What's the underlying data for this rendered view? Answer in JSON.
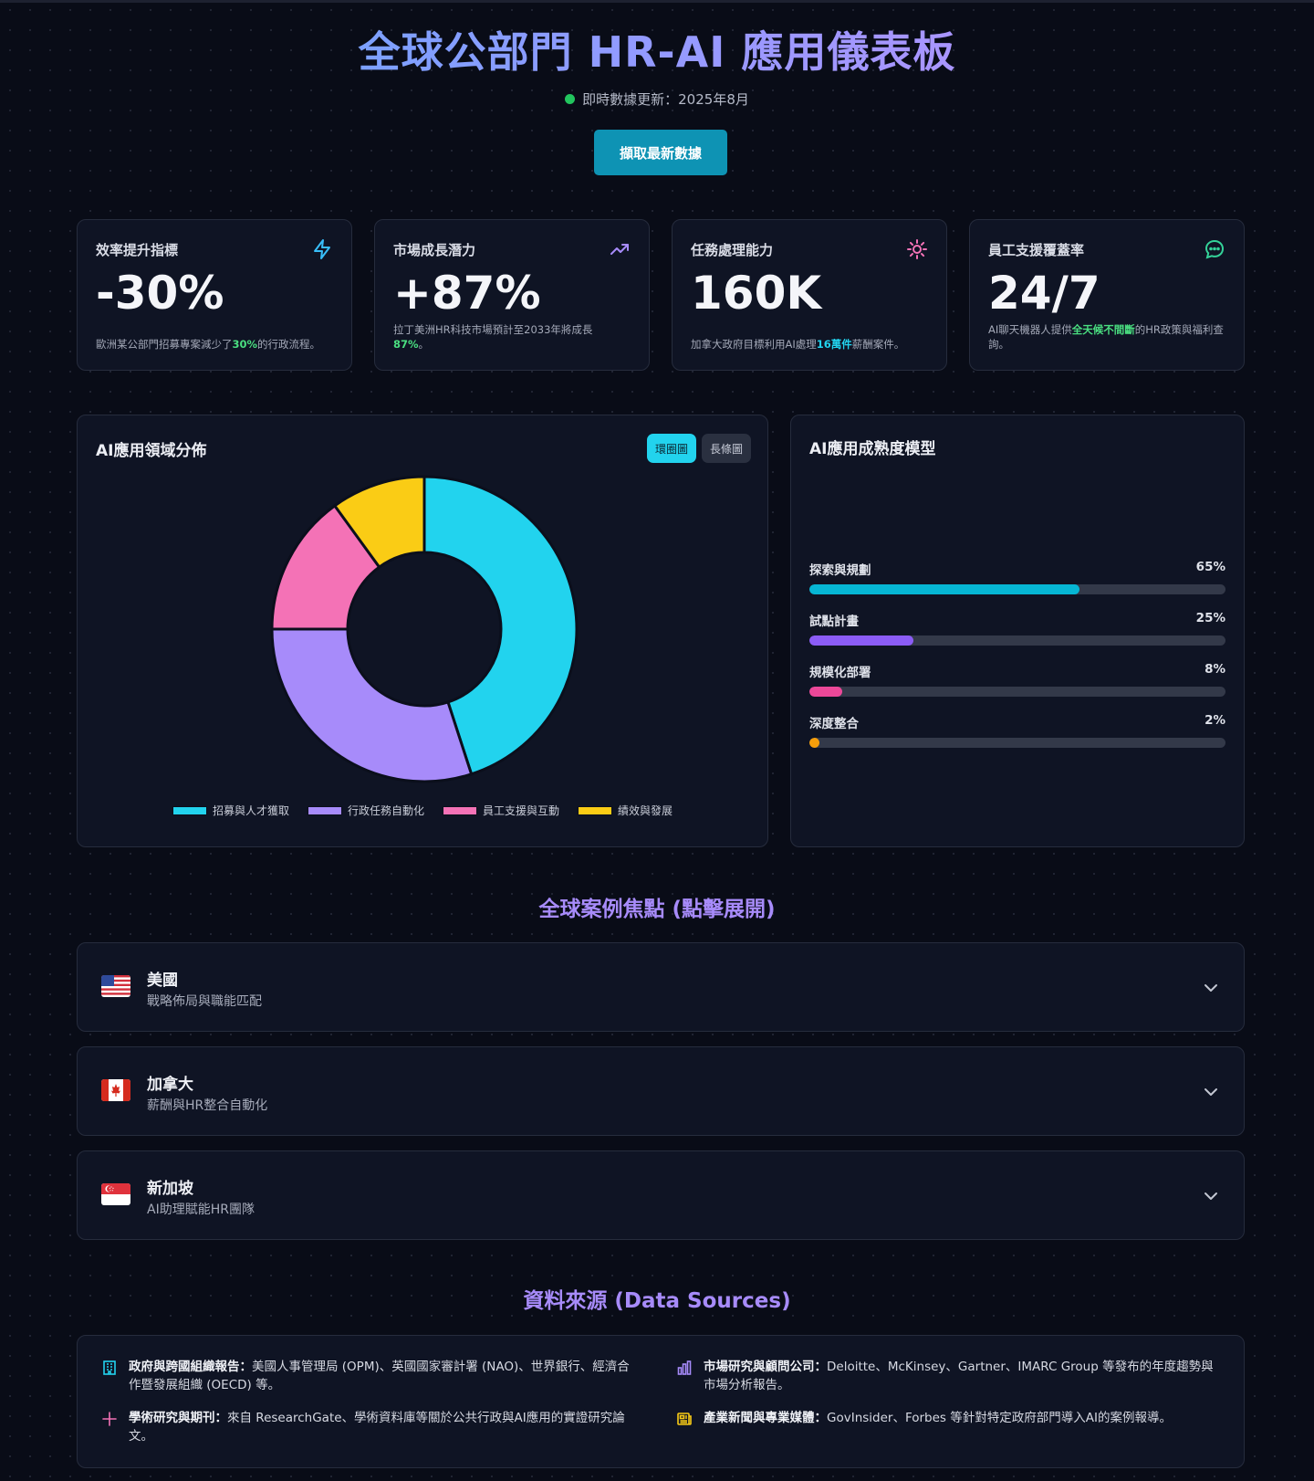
{
  "header": {
    "title": "全球公部門 HR-AI 應用儀表板",
    "status": "即時數據更新：2025年8月",
    "fetch_button": "擷取最新數據"
  },
  "stats": [
    {
      "label": "效率提升指標",
      "value": "-30%",
      "desc_pre": "歐洲某公部門招募專案減少了",
      "desc_hl": "30%",
      "desc_post": "的行政流程。",
      "icon": "lightning-icon",
      "icon_color": "#38bdf8"
    },
    {
      "label": "市場成長潛力",
      "value": "+87%",
      "desc_pre": "拉丁美洲HR科技市場預計至2033年將成長",
      "desc_hl": "87%",
      "desc_post": "。",
      "icon": "trending-up-icon",
      "icon_color": "#a78bfa"
    },
    {
      "label": "任務處理能力",
      "value": "160K",
      "desc_pre": "加拿大政府目標利用AI處理",
      "desc_hl": "16萬件",
      "desc_post": "薪酬案件。",
      "icon": "gear-icon",
      "icon_color": "#f472b6"
    },
    {
      "label": "員工支援覆蓋率",
      "value": "24/7",
      "desc_pre": "AI聊天機器人提供",
      "desc_hl": "全天候不間斷",
      "desc_post": "的HR政策與福利查詢。",
      "icon": "chat-bubble-icon",
      "icon_color": "#34d399"
    }
  ],
  "distribution_panel": {
    "title": "AI應用領域分佈",
    "toggle_donut": "環圈圖",
    "toggle_bar": "長條圖"
  },
  "chart_data": {
    "type": "pie",
    "categories": [
      "招募與人才獲取",
      "行政任務自動化",
      "員工支援與互動",
      "績效與發展"
    ],
    "values": [
      45,
      30,
      15,
      10
    ],
    "colors": [
      "#22d3ee",
      "#a78bfa",
      "#f472b6",
      "#facc15"
    ],
    "legend_position": "bottom"
  },
  "maturity_panel": {
    "title": "AI應用成熟度模型",
    "stages": [
      {
        "label": "探索與規劃",
        "value": 65,
        "value_label": "65%",
        "color": "#06b6d4"
      },
      {
        "label": "試點計畫",
        "value": 25,
        "value_label": "25%",
        "color": "#8b5cf6"
      },
      {
        "label": "規模化部署",
        "value": 8,
        "value_label": "8%",
        "color": "#ec4899"
      },
      {
        "label": "深度整合",
        "value": 2,
        "value_label": "2%",
        "color": "#f59e0b"
      }
    ]
  },
  "cases": {
    "title": "全球案例焦點 (點擊展開)",
    "items": [
      {
        "country": "美國",
        "subtitle": "戰略佈局與職能匹配",
        "flag": "us-flag-icon"
      },
      {
        "country": "加拿大",
        "subtitle": "薪酬與HR整合自動化",
        "flag": "canada-flag-icon"
      },
      {
        "country": "新加坡",
        "subtitle": "AI助理賦能HR團隊",
        "flag": "singapore-flag-icon"
      }
    ]
  },
  "sources": {
    "title": "資料來源 (Data Sources)",
    "items": [
      {
        "heading": "政府與跨國組織報告：",
        "text": "美國人事管理局 (OPM)、英國國家審計署 (NAO)、世界銀行、經濟合作暨發展組織 (OECD) 等。",
        "icon": "building-icon",
        "icon_color": "#22d3ee"
      },
      {
        "heading": "市場研究與顧問公司：",
        "text": "Deloitte、McKinsey、Gartner、IMARC Group 等發布的年度趨勢與市場分析報告。",
        "icon": "bar-chart-icon",
        "icon_color": "#a78bfa"
      },
      {
        "heading": "學術研究與期刊：",
        "text": "來自 ResearchGate、學術資料庫等關於公共行政與AI應用的實證研究論文。",
        "icon": "plus-icon",
        "icon_color": "#f472b6"
      },
      {
        "heading": "產業新聞與專業媒體：",
        "text": "GovInsider、Forbes 等針對特定政府部門導入AI的案例報導。",
        "icon": "newspaper-icon",
        "icon_color": "#facc15"
      }
    ]
  }
}
